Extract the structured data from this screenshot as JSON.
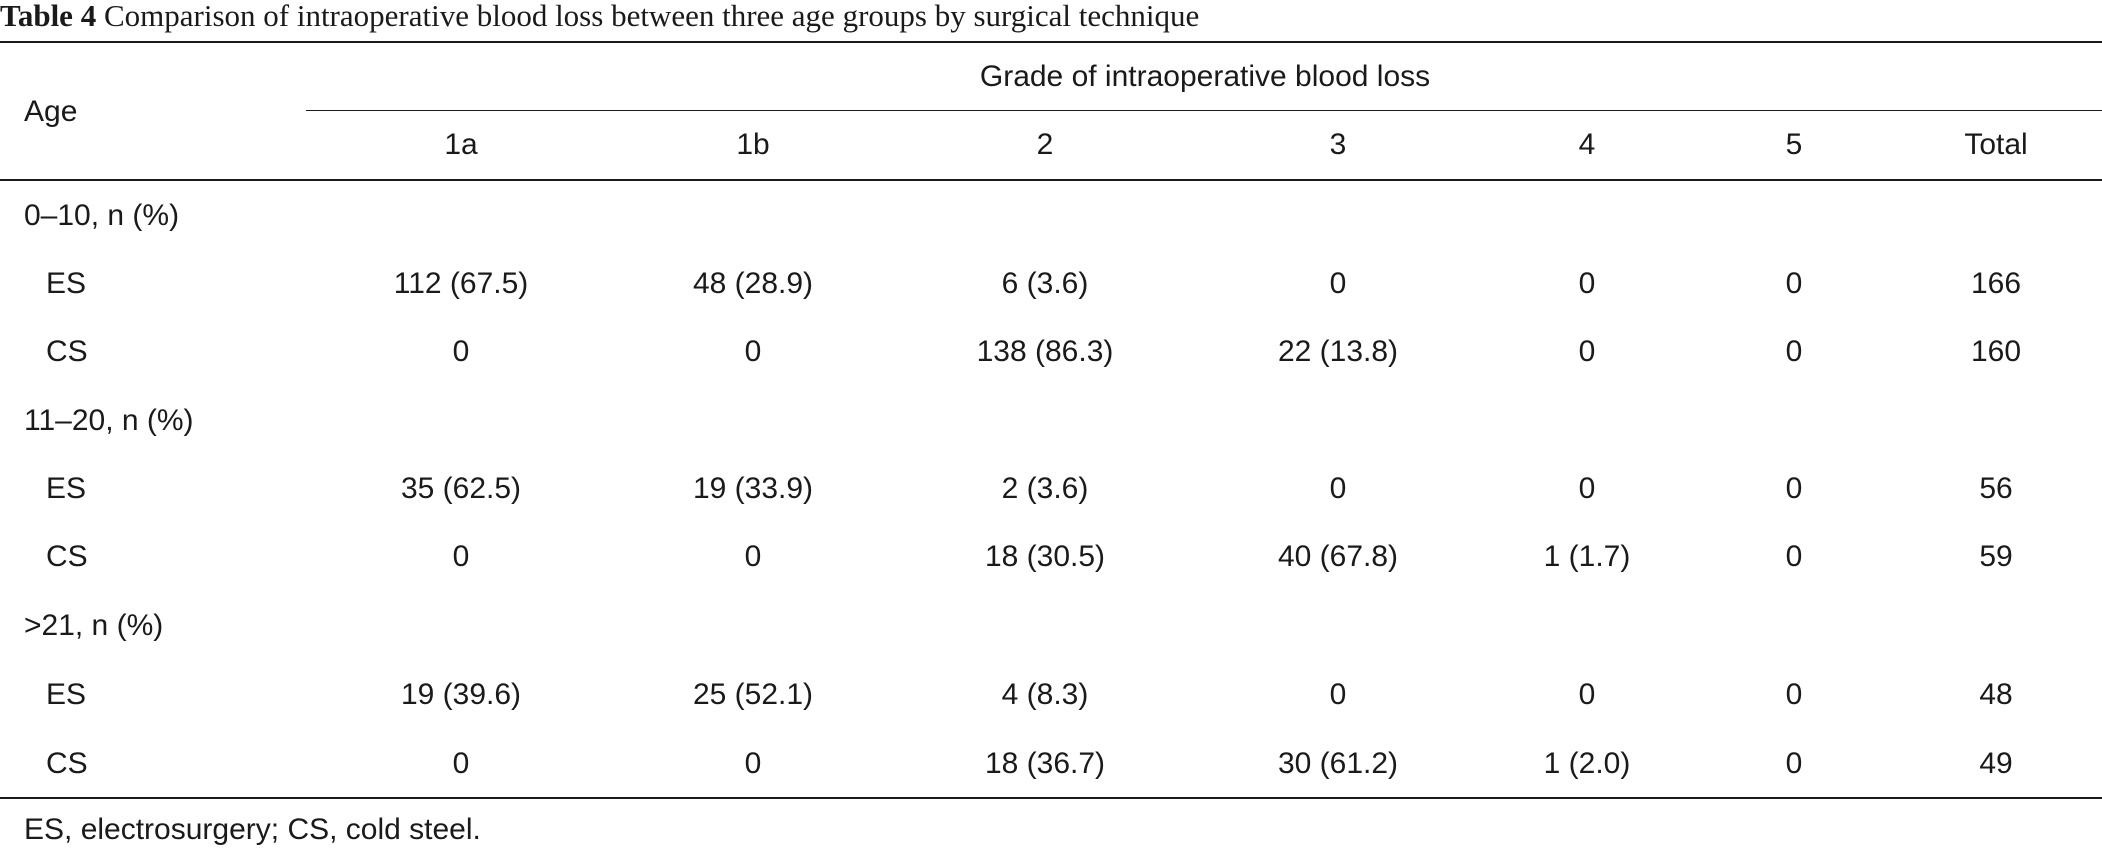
{
  "caption": {
    "label": "Table 4",
    "text": " Comparison of intraoperative blood loss between three age groups by surgical technique"
  },
  "header": {
    "row_label": "Age",
    "group_label": "Grade of intraoperative blood loss",
    "columns": [
      "1a",
      "1b",
      "2",
      "3",
      "4",
      "5",
      "Total"
    ]
  },
  "groups": [
    {
      "label": "0–10, n (%)",
      "rows": [
        {
          "label": "ES",
          "values": [
            "112 (67.5)",
            "48 (28.9)",
            "6 (3.6)",
            "0",
            "0",
            "0",
            "166"
          ]
        },
        {
          "label": "CS",
          "values": [
            "0",
            "0",
            "138 (86.3)",
            "22 (13.8)",
            "0",
            "0",
            "160"
          ]
        }
      ]
    },
    {
      "label": "11–20, n (%)",
      "rows": [
        {
          "label": "ES",
          "values": [
            "35 (62.5)",
            "19 (33.9)",
            "2 (3.6)",
            "0",
            "0",
            "0",
            "56"
          ]
        },
        {
          "label": "CS",
          "values": [
            "0",
            "0",
            "18 (30.5)",
            "40 (67.8)",
            "1 (1.7)",
            "0",
            "59"
          ]
        }
      ]
    },
    {
      "label": ">21, n (%)",
      "rows": [
        {
          "label": "ES",
          "values": [
            "19 (39.6)",
            "25 (52.1)",
            "4 (8.3)",
            "0",
            "0",
            "0",
            "48"
          ]
        },
        {
          "label": "CS",
          "values": [
            "0",
            "0",
            "18 (36.7)",
            "30 (61.2)",
            "1 (2.0)",
            "0",
            "49"
          ]
        }
      ]
    }
  ],
  "footnote": "ES, electrosurgery; CS, cold steel."
}
